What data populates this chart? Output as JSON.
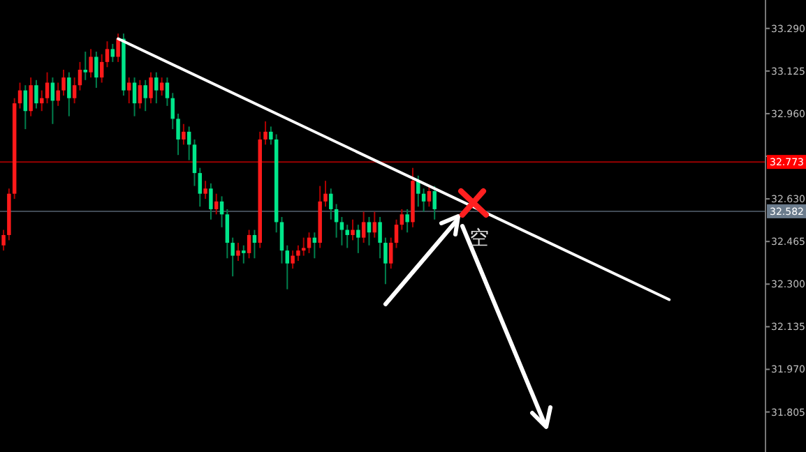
{
  "chart_data": {
    "type": "candlestick",
    "categories": [
      null,
      null,
      null,
      null,
      null,
      null,
      null,
      null,
      null,
      null,
      null,
      null,
      null,
      null,
      null,
      null,
      null,
      null,
      null,
      null,
      null,
      null,
      null,
      null,
      null,
      null,
      null,
      null,
      null,
      null,
      null,
      null,
      null,
      null,
      null,
      null,
      null,
      null,
      null,
      null,
      null,
      null,
      null,
      null,
      null,
      null,
      null,
      null,
      null,
      null,
      null,
      null,
      null,
      null,
      null,
      null,
      null,
      null,
      null,
      null,
      null,
      null,
      null,
      null,
      null,
      null,
      null,
      null,
      null,
      null,
      null,
      null,
      null,
      null,
      null,
      null,
      null,
      null,
      null,
      null,
      null,
      null,
      null,
      null,
      null,
      null,
      null,
      null,
      null,
      null,
      null,
      null,
      null,
      null,
      null,
      null,
      null,
      null,
      null,
      null,
      null,
      null,
      null,
      null,
      null,
      null,
      null,
      null,
      null,
      null,
      null,
      null,
      null,
      null,
      null,
      null,
      null,
      null,
      null,
      null,
      null,
      null,
      null,
      null,
      null,
      null,
      null,
      null,
      null,
      null,
      null,
      null,
      null,
      null,
      null,
      null,
      null,
      null,
      null,
      null
    ],
    "ohlc": [
      [
        32.45,
        32.51,
        32.43,
        32.49
      ],
      [
        32.49,
        32.67,
        32.47,
        32.65
      ],
      [
        32.65,
        33.02,
        32.63,
        33.0
      ],
      [
        33.0,
        33.08,
        32.98,
        33.05
      ],
      [
        33.05,
        33.07,
        32.9,
        32.97
      ],
      [
        32.97,
        33.1,
        32.95,
        33.07
      ],
      [
        33.07,
        33.09,
        32.98,
        33.0
      ],
      [
        33.0,
        33.05,
        32.97,
        33.02
      ],
      [
        33.02,
        33.12,
        33.0,
        33.08
      ],
      [
        33.08,
        33.1,
        32.92,
        33.01
      ],
      [
        33.01,
        33.08,
        32.99,
        33.05
      ],
      [
        33.05,
        33.13,
        33.03,
        33.1
      ],
      [
        33.1,
        33.12,
        32.95,
        33.02
      ],
      [
        33.02,
        33.1,
        33.0,
        33.07
      ],
      [
        33.07,
        33.16,
        33.05,
        33.13
      ],
      [
        33.13,
        33.2,
        33.09,
        33.12
      ],
      [
        33.12,
        33.21,
        33.1,
        33.18
      ],
      [
        33.18,
        33.2,
        33.06,
        33.1
      ],
      [
        33.1,
        33.19,
        33.08,
        33.16
      ],
      [
        33.16,
        33.24,
        33.14,
        33.21
      ],
      [
        33.21,
        33.23,
        33.16,
        33.18
      ],
      [
        33.18,
        33.27,
        33.16,
        33.25
      ],
      [
        33.25,
        33.27,
        33.03,
        33.05
      ],
      [
        33.05,
        33.1,
        33.0,
        33.08
      ],
      [
        33.08,
        33.1,
        32.95,
        33.0
      ],
      [
        33.0,
        33.09,
        32.98,
        33.07
      ],
      [
        33.07,
        33.09,
        32.97,
        33.02
      ],
      [
        33.02,
        33.12,
        33.0,
        33.1
      ],
      [
        33.1,
        33.12,
        33.0,
        33.05
      ],
      [
        33.05,
        33.1,
        33.03,
        33.08
      ],
      [
        33.08,
        33.1,
        32.99,
        33.02
      ],
      [
        33.02,
        33.04,
        32.9,
        32.94
      ],
      [
        32.94,
        32.96,
        32.8,
        32.86
      ],
      [
        32.86,
        32.92,
        32.84,
        32.89
      ],
      [
        32.89,
        32.91,
        32.78,
        32.84
      ],
      [
        32.84,
        32.86,
        32.68,
        32.73
      ],
      [
        32.73,
        32.75,
        32.6,
        32.65
      ],
      [
        32.65,
        32.7,
        32.63,
        32.67
      ],
      [
        32.67,
        32.69,
        32.55,
        32.59
      ],
      [
        32.59,
        32.65,
        32.57,
        32.62
      ],
      [
        32.62,
        32.64,
        32.52,
        32.57
      ],
      [
        32.57,
        32.59,
        32.4,
        32.46
      ],
      [
        32.46,
        32.48,
        32.33,
        32.41
      ],
      [
        32.41,
        32.46,
        32.39,
        32.43
      ],
      [
        32.43,
        32.45,
        32.38,
        32.42
      ],
      [
        32.42,
        32.51,
        32.4,
        32.49
      ],
      [
        32.49,
        32.51,
        32.4,
        32.46
      ],
      [
        32.46,
        32.89,
        32.44,
        32.86
      ],
      [
        32.86,
        32.93,
        32.84,
        32.89
      ],
      [
        32.89,
        32.91,
        32.84,
        32.86
      ],
      [
        32.86,
        32.88,
        32.5,
        32.54
      ],
      [
        32.54,
        32.56,
        32.38,
        32.43
      ],
      [
        32.43,
        32.45,
        32.28,
        32.38
      ],
      [
        32.38,
        32.43,
        32.36,
        32.41
      ],
      [
        32.41,
        32.45,
        32.39,
        32.43
      ],
      [
        32.43,
        32.48,
        32.41,
        32.44
      ],
      [
        32.44,
        32.5,
        32.42,
        32.48
      ],
      [
        32.48,
        32.5,
        32.4,
        32.46
      ],
      [
        32.46,
        32.68,
        32.44,
        32.62
      ],
      [
        32.62,
        32.7,
        32.6,
        32.65
      ],
      [
        32.65,
        32.67,
        32.55,
        32.59
      ],
      [
        32.59,
        32.61,
        32.48,
        32.54
      ],
      [
        32.54,
        32.56,
        32.45,
        32.51
      ],
      [
        32.51,
        32.53,
        32.44,
        32.49
      ],
      [
        32.49,
        32.55,
        32.47,
        32.51
      ],
      [
        32.51,
        32.53,
        32.42,
        32.48
      ],
      [
        32.48,
        32.58,
        32.46,
        32.54
      ],
      [
        32.54,
        32.56,
        32.45,
        32.5
      ],
      [
        32.5,
        32.58,
        32.48,
        32.54
      ],
      [
        32.54,
        32.56,
        32.4,
        32.46
      ],
      [
        32.46,
        32.48,
        32.3,
        32.38
      ],
      [
        32.38,
        32.48,
        32.36,
        32.46
      ],
      [
        32.46,
        32.55,
        32.44,
        32.53
      ],
      [
        32.53,
        32.59,
        32.51,
        32.57
      ],
      [
        32.57,
        32.59,
        32.5,
        32.54
      ],
      [
        32.54,
        32.75,
        32.52,
        32.7
      ],
      [
        32.7,
        32.72,
        32.6,
        32.65
      ],
      [
        32.65,
        32.67,
        32.58,
        32.62
      ],
      [
        32.62,
        32.68,
        32.6,
        32.66
      ],
      [
        32.66,
        32.68,
        32.55,
        32.59
      ],
      null,
      null,
      null,
      null,
      null,
      null,
      null,
      null,
      null,
      null,
      null,
      null,
      null,
      null,
      null,
      null,
      null,
      null,
      null,
      null,
      null,
      null,
      null,
      null,
      null,
      null,
      null,
      null,
      null,
      null,
      null,
      null,
      null,
      null,
      null,
      null,
      null,
      null,
      null,
      null,
      null,
      null,
      null,
      null,
      null,
      null,
      null,
      null,
      null,
      null,
      null,
      null,
      null,
      null,
      null,
      null,
      null,
      null,
      null,
      null
    ],
    "series": [
      {
        "type": "line",
        "color": "#ffffff",
        "values": [
          null,
          null,
          null,
          null,
          null,
          null,
          null,
          null,
          null,
          null,
          null,
          null,
          null,
          null,
          null,
          null,
          null,
          null,
          null,
          null,
          null,
          33.25,
          null,
          null,
          null,
          null,
          null,
          null,
          null,
          null,
          null,
          null,
          null,
          null,
          null,
          null,
          null,
          null,
          null,
          null,
          null,
          null,
          null,
          null,
          null,
          null,
          null,
          null,
          null,
          null,
          null,
          null,
          null,
          null,
          null,
          null,
          null,
          null,
          null,
          null,
          null,
          null,
          null,
          null,
          null,
          null,
          null,
          null,
          null,
          null,
          null,
          null,
          null,
          null,
          null,
          null,
          null,
          null,
          null,
          null,
          null,
          null,
          null,
          null,
          null,
          null,
          null,
          null,
          null,
          null,
          null,
          null,
          null,
          null,
          null,
          null,
          null,
          null,
          null,
          null,
          null,
          null,
          null,
          null,
          null,
          null,
          null,
          null,
          null,
          null,
          null,
          null,
          null,
          null,
          null,
          null,
          null,
          null,
          null,
          null,
          null,
          null,
          32.24,
          null,
          null,
          null,
          null,
          null,
          null,
          null,
          null,
          null,
          null,
          null,
          null,
          null,
          null,
          null,
          null,
          null
        ]
      }
    ],
    "ylim": [
      31.65,
      33.4
    ],
    "yticks": [
      {
        "value": 31.805,
        "label": "31.805"
      },
      {
        "value": 31.97,
        "label": "31.970"
      },
      {
        "value": 32.135,
        "label": "32.135"
      },
      {
        "value": 32.3,
        "label": "32.300"
      },
      {
        "value": 32.465,
        "label": "32.465"
      },
      {
        "value": 32.63,
        "label": "32.630"
      },
      {
        "value": 32.795,
        "label": null
      },
      {
        "value": 32.96,
        "label": "32.960"
      },
      {
        "value": 33.125,
        "label": "33.125"
      },
      {
        "value": 33.29,
        "label": "33.290"
      }
    ],
    "ref_lines": [
      {
        "axis": "y",
        "value": 32.773,
        "label": "32.773",
        "color": "#ff0000"
      },
      {
        "axis": "y",
        "value": 32.582,
        "label": "32.582",
        "color": "#6a7b8c"
      }
    ],
    "annotations": [
      "空"
    ],
    "grid": false,
    "tick_labels": "y"
  }
}
